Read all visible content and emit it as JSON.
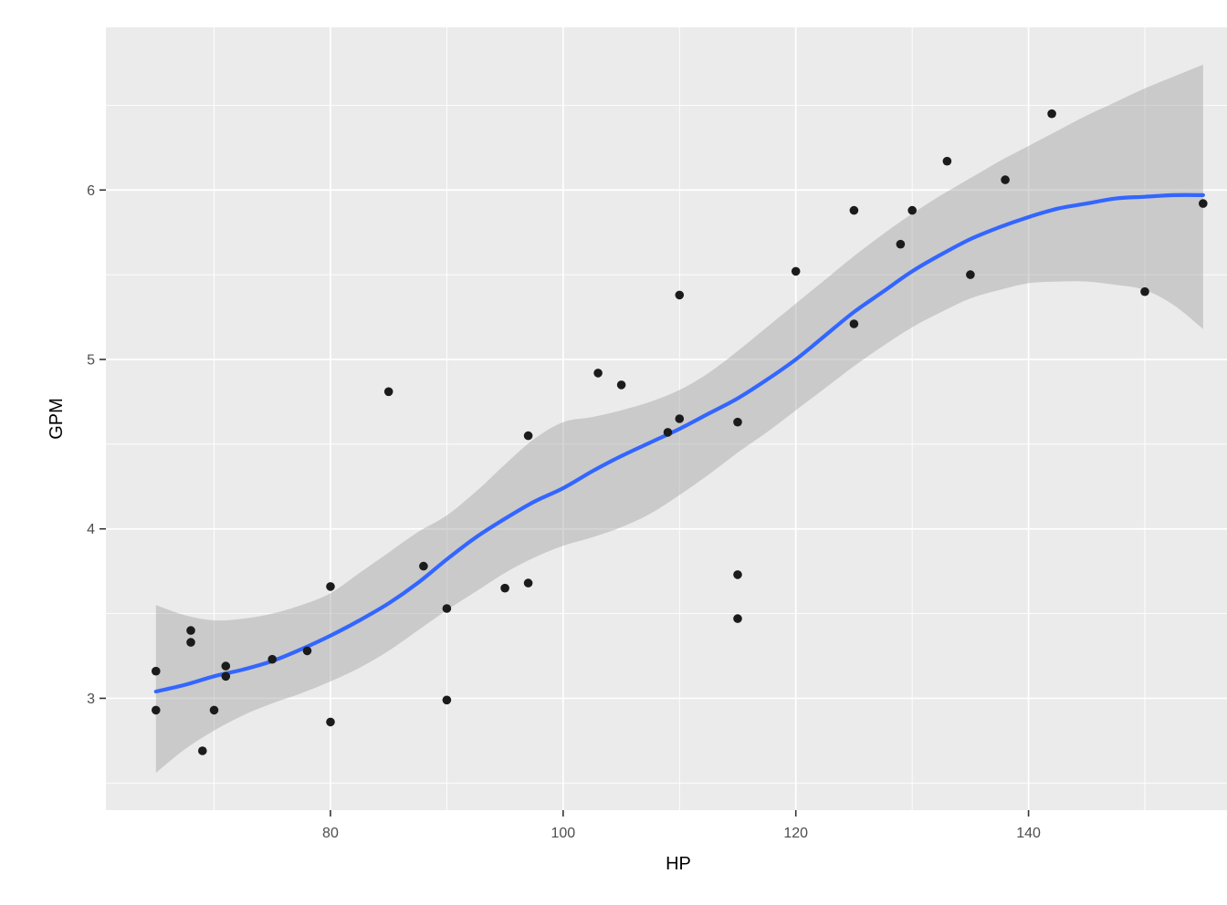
{
  "chart_data": {
    "type": "scatter",
    "title": "",
    "xlabel": "HP",
    "ylabel": "GPM",
    "legend": "none",
    "grid": "on",
    "xlim": [
      60.7,
      159.1
    ],
    "ylim": [
      2.34,
      6.96
    ],
    "x_major_ticks": [
      80,
      100,
      120,
      140
    ],
    "x_minor_gridlines": [
      70,
      90,
      110,
      130,
      150
    ],
    "y_major_ticks": [
      3,
      4,
      5,
      6
    ],
    "y_minor_gridlines": [
      2.5,
      3.5,
      4.5,
      5.5,
      6.5
    ],
    "points": [
      [
        65,
        3.16
      ],
      [
        65,
        2.93
      ],
      [
        68,
        3.4
      ],
      [
        68,
        3.33
      ],
      [
        69,
        2.69
      ],
      [
        70,
        2.93
      ],
      [
        71,
        3.19
      ],
      [
        71,
        3.13
      ],
      [
        75,
        3.23
      ],
      [
        78,
        3.28
      ],
      [
        80,
        3.66
      ],
      [
        80,
        2.86
      ],
      [
        85,
        4.81
      ],
      [
        88,
        3.78
      ],
      [
        90,
        3.53
      ],
      [
        90,
        2.99
      ],
      [
        95,
        3.65
      ],
      [
        97,
        3.68
      ],
      [
        97,
        4.55
      ],
      [
        103,
        4.92
      ],
      [
        105,
        4.85
      ],
      [
        109,
        4.57
      ],
      [
        110,
        4.65
      ],
      [
        110,
        5.38
      ],
      [
        115,
        4.63
      ],
      [
        115,
        3.73
      ],
      [
        115,
        3.47
      ],
      [
        120,
        5.52
      ],
      [
        125,
        5.21
      ],
      [
        125,
        5.88
      ],
      [
        129,
        5.68
      ],
      [
        130,
        5.88
      ],
      [
        133,
        6.17
      ],
      [
        135,
        5.5
      ],
      [
        138,
        6.06
      ],
      [
        142,
        6.45
      ],
      [
        150,
        5.4
      ],
      [
        155,
        5.92
      ]
    ],
    "smooth_line": {
      "method": "loess",
      "x": [
        65,
        67.5,
        70,
        72.5,
        75,
        77.5,
        80,
        82.5,
        85,
        87.5,
        90,
        92.5,
        95,
        97.5,
        100,
        102.5,
        105,
        107.5,
        110,
        112.5,
        115,
        117.5,
        120,
        122.5,
        125,
        127.5,
        130,
        132.5,
        135,
        137.5,
        140,
        142.5,
        145,
        147.5,
        150,
        152.5,
        155
      ],
      "y": [
        3.04,
        3.08,
        3.13,
        3.17,
        3.22,
        3.29,
        3.37,
        3.46,
        3.56,
        3.68,
        3.82,
        3.95,
        4.06,
        4.16,
        4.24,
        4.34,
        4.43,
        4.51,
        4.59,
        4.68,
        4.77,
        4.88,
        5.0,
        5.14,
        5.28,
        5.4,
        5.52,
        5.62,
        5.71,
        5.78,
        5.84,
        5.89,
        5.92,
        5.95,
        5.96,
        5.97,
        5.97
      ]
    },
    "confidence_band": {
      "x": [
        65,
        67.5,
        70,
        72.5,
        75,
        77.5,
        80,
        82.5,
        85,
        87.5,
        90,
        92.5,
        95,
        97.5,
        100,
        102.5,
        105,
        107.5,
        110,
        112.5,
        115,
        117.5,
        120,
        122.5,
        125,
        127.5,
        130,
        132.5,
        135,
        137.5,
        140,
        142.5,
        145,
        147.5,
        150,
        152.5,
        155
      ],
      "lower": [
        2.56,
        2.7,
        2.81,
        2.9,
        2.97,
        3.03,
        3.1,
        3.18,
        3.28,
        3.4,
        3.52,
        3.63,
        3.74,
        3.83,
        3.9,
        3.95,
        4.01,
        4.09,
        4.2,
        4.32,
        4.45,
        4.57,
        4.7,
        4.83,
        4.96,
        5.08,
        5.19,
        5.28,
        5.36,
        5.41,
        5.45,
        5.46,
        5.46,
        5.44,
        5.41,
        5.32,
        5.18
      ],
      "upper": [
        3.55,
        3.49,
        3.46,
        3.47,
        3.5,
        3.55,
        3.62,
        3.74,
        3.86,
        3.98,
        4.08,
        4.22,
        4.38,
        4.53,
        4.63,
        4.66,
        4.7,
        4.75,
        4.82,
        4.92,
        5.05,
        5.19,
        5.33,
        5.47,
        5.61,
        5.74,
        5.86,
        5.97,
        6.07,
        6.17,
        6.26,
        6.35,
        6.44,
        6.52,
        6.6,
        6.67,
        6.74
      ]
    },
    "colors": {
      "panel_background": "#EBEBEB",
      "gridline": "#FFFFFF",
      "point": "#1B1B1B",
      "smooth_line": "#3366FF",
      "ribbon_fill": "rgba(153,153,153,0.4)",
      "tick_mark": "#333333",
      "tick_label": "#4D4D4D",
      "axis_title": "#000000",
      "outer_background": "#FFFFFF"
    }
  }
}
